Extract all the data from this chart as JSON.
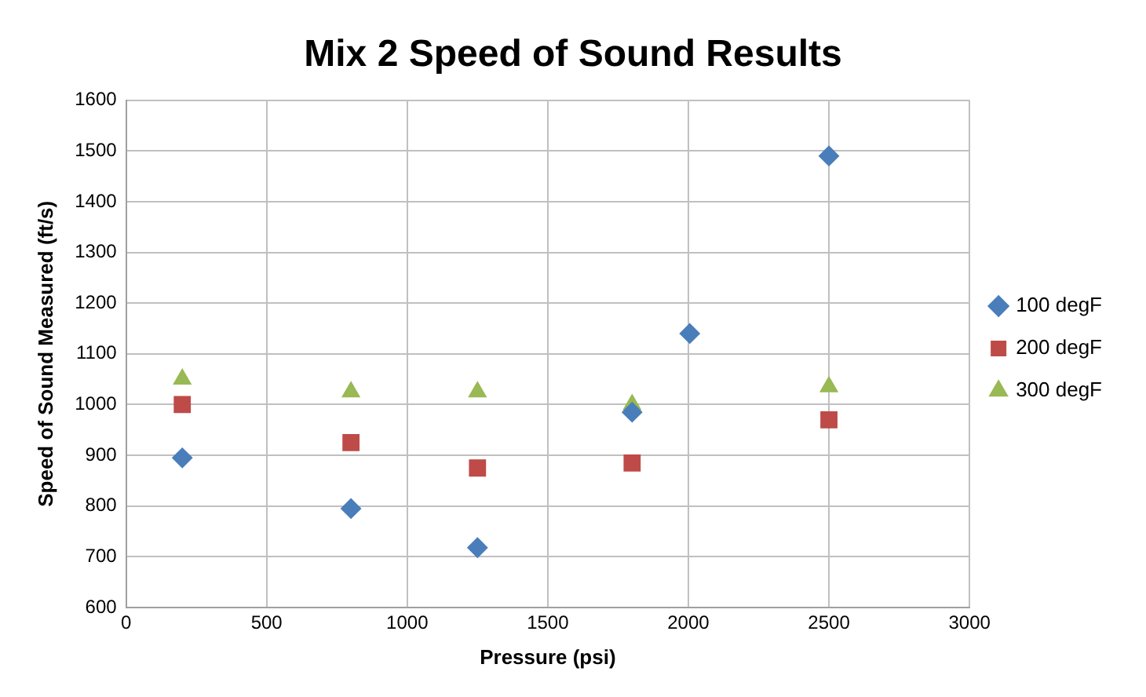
{
  "chart_data": {
    "type": "scatter",
    "title": "Mix 2 Speed of Sound Results",
    "xlabel": "Pressure (psi)",
    "ylabel": "Speed of Sound Measured (ft/s)",
    "xlim": [
      0,
      3000
    ],
    "xticks": [
      0,
      500,
      1000,
      1500,
      2000,
      2500,
      3000
    ],
    "ylim": [
      600,
      1600
    ],
    "yticks": [
      600,
      700,
      800,
      900,
      1000,
      1100,
      1200,
      1300,
      1400,
      1500,
      1600
    ],
    "grid": true,
    "legend": "right",
    "series": [
      {
        "name": "100 degF",
        "color": "#4a7ebb",
        "marker": "diamond",
        "x": [
          200,
          800,
          1250,
          1800,
          2005,
          2500
        ],
        "values": [
          895,
          795,
          718,
          985,
          1140,
          1490
        ]
      },
      {
        "name": "200 degF",
        "color": "#be4b48",
        "marker": "square",
        "x": [
          200,
          800,
          1250,
          1800,
          2500
        ],
        "values": [
          1000,
          925,
          875,
          885,
          970
        ]
      },
      {
        "name": "300 degF",
        "color": "#98b954",
        "marker": "triangle",
        "x": [
          200,
          800,
          1250,
          1800,
          2500
        ],
        "values": [
          1050,
          1025,
          1025,
          1000,
          1035
        ]
      }
    ]
  }
}
